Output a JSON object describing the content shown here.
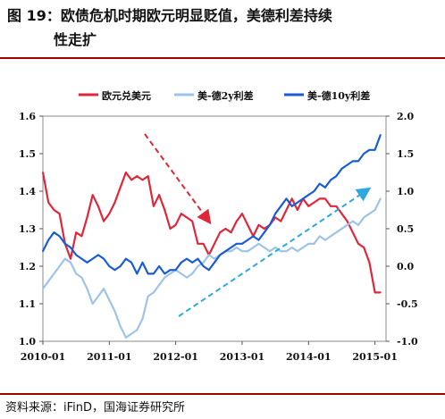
{
  "title": {
    "line1": "图 19：欧债危机时期欧元明显贬值，美德利差持续",
    "line2": "性走扩"
  },
  "source": "资料来源：iFinD，国海证券研究所",
  "colors": {
    "eur": "#e0263a",
    "us_de_2y": "#9dc3e6",
    "us_de_10y": "#1a5bd6",
    "arrow_red": "#e0263a",
    "arrow_blue": "#2ea8e0",
    "rule": "#a00000"
  },
  "chart_data": {
    "type": "line",
    "title": "",
    "x_ticks": [
      "2010-01",
      "2011-01",
      "2012-01",
      "2013-01",
      "2014-01",
      "2015-01"
    ],
    "xlim": [
      "2010-01",
      "2015-03"
    ],
    "y_left": {
      "ticks": [
        "1.0",
        "1.1",
        "1.2",
        "1.3",
        "1.4",
        "1.5",
        "1.6"
      ],
      "lim": [
        1.0,
        1.6
      ]
    },
    "y_right": {
      "ticks": [
        "-1.0",
        "-0.5",
        "0.0",
        "0.5",
        "1.0",
        "1.5",
        "2.0"
      ],
      "lim": [
        -1.0,
        2.0
      ]
    },
    "legend_position": "top",
    "series": [
      {
        "name": "欧元兑美元",
        "axis": "left",
        "color": "#e0263a",
        "points": [
          [
            "2010-01",
            1.45
          ],
          [
            "2010-02",
            1.37
          ],
          [
            "2010-03",
            1.35
          ],
          [
            "2010-04",
            1.34
          ],
          [
            "2010-05",
            1.26
          ],
          [
            "2010-06",
            1.22
          ],
          [
            "2010-07",
            1.29
          ],
          [
            "2010-08",
            1.28
          ],
          [
            "2010-09",
            1.33
          ],
          [
            "2010-10",
            1.39
          ],
          [
            "2010-11",
            1.36
          ],
          [
            "2010-12",
            1.32
          ],
          [
            "2011-01",
            1.34
          ],
          [
            "2011-02",
            1.37
          ],
          [
            "2011-03",
            1.41
          ],
          [
            "2011-04",
            1.45
          ],
          [
            "2011-05",
            1.43
          ],
          [
            "2011-06",
            1.44
          ],
          [
            "2011-07",
            1.43
          ],
          [
            "2011-08",
            1.44
          ],
          [
            "2011-09",
            1.36
          ],
          [
            "2011-10",
            1.39
          ],
          [
            "2011-11",
            1.35
          ],
          [
            "2011-12",
            1.3
          ],
          [
            "2012-01",
            1.31
          ],
          [
            "2012-02",
            1.34
          ],
          [
            "2012-03",
            1.33
          ],
          [
            "2012-04",
            1.32
          ],
          [
            "2012-05",
            1.26
          ],
          [
            "2012-06",
            1.26
          ],
          [
            "2012-07",
            1.23
          ],
          [
            "2012-08",
            1.26
          ],
          [
            "2012-09",
            1.29
          ],
          [
            "2012-10",
            1.3
          ],
          [
            "2012-11",
            1.29
          ],
          [
            "2012-12",
            1.32
          ],
          [
            "2013-01",
            1.34
          ],
          [
            "2013-02",
            1.31
          ],
          [
            "2013-03",
            1.28
          ],
          [
            "2013-04",
            1.31
          ],
          [
            "2013-05",
            1.3
          ],
          [
            "2013-06",
            1.31
          ],
          [
            "2013-07",
            1.33
          ],
          [
            "2013-08",
            1.32
          ],
          [
            "2013-09",
            1.35
          ],
          [
            "2013-10",
            1.38
          ],
          [
            "2013-11",
            1.35
          ],
          [
            "2013-12",
            1.38
          ],
          [
            "2014-01",
            1.36
          ],
          [
            "2014-02",
            1.37
          ],
          [
            "2014-03",
            1.38
          ],
          [
            "2014-04",
            1.38
          ],
          [
            "2014-05",
            1.36
          ],
          [
            "2014-06",
            1.36
          ],
          [
            "2014-07",
            1.34
          ],
          [
            "2014-08",
            1.32
          ],
          [
            "2014-09",
            1.29
          ],
          [
            "2014-10",
            1.26
          ],
          [
            "2014-11",
            1.25
          ],
          [
            "2014-12",
            1.21
          ],
          [
            "2015-01",
            1.13
          ],
          [
            "2015-02",
            1.13
          ]
        ]
      },
      {
        "name": "美-德2y利差",
        "axis": "right",
        "color": "#9dc3e6",
        "points": [
          [
            "2010-01",
            -0.3
          ],
          [
            "2010-02",
            -0.2
          ],
          [
            "2010-03",
            -0.1
          ],
          [
            "2010-04",
            0.0
          ],
          [
            "2010-05",
            0.1
          ],
          [
            "2010-06",
            0.05
          ],
          [
            "2010-07",
            -0.1
          ],
          [
            "2010-08",
            -0.15
          ],
          [
            "2010-09",
            -0.3
          ],
          [
            "2010-10",
            -0.5
          ],
          [
            "2010-11",
            -0.4
          ],
          [
            "2010-12",
            -0.3
          ],
          [
            "2011-01",
            -0.45
          ],
          [
            "2011-02",
            -0.6
          ],
          [
            "2011-03",
            -0.8
          ],
          [
            "2011-04",
            -0.95
          ],
          [
            "2011-05",
            -0.9
          ],
          [
            "2011-06",
            -0.85
          ],
          [
            "2011-07",
            -0.7
          ],
          [
            "2011-08",
            -0.4
          ],
          [
            "2011-09",
            -0.35
          ],
          [
            "2011-10",
            -0.25
          ],
          [
            "2011-11",
            -0.15
          ],
          [
            "2011-12",
            -0.1
          ],
          [
            "2012-01",
            -0.05
          ],
          [
            "2012-02",
            -0.1
          ],
          [
            "2012-03",
            -0.15
          ],
          [
            "2012-04",
            -0.1
          ],
          [
            "2012-05",
            0.0
          ],
          [
            "2012-06",
            0.05
          ],
          [
            "2012-07",
            0.15
          ],
          [
            "2012-08",
            0.1
          ],
          [
            "2012-09",
            0.15
          ],
          [
            "2012-10",
            0.2
          ],
          [
            "2012-11",
            0.2
          ],
          [
            "2012-12",
            0.25
          ],
          [
            "2013-01",
            0.2
          ],
          [
            "2013-02",
            0.2
          ],
          [
            "2013-03",
            0.25
          ],
          [
            "2013-04",
            0.3
          ],
          [
            "2013-05",
            0.25
          ],
          [
            "2013-06",
            0.2
          ],
          [
            "2013-07",
            0.25
          ],
          [
            "2013-08",
            0.2
          ],
          [
            "2013-09",
            0.2
          ],
          [
            "2013-10",
            0.25
          ],
          [
            "2013-11",
            0.2
          ],
          [
            "2013-12",
            0.25
          ],
          [
            "2014-01",
            0.3
          ],
          [
            "2014-02",
            0.3
          ],
          [
            "2014-03",
            0.4
          ],
          [
            "2014-04",
            0.35
          ],
          [
            "2014-05",
            0.4
          ],
          [
            "2014-06",
            0.45
          ],
          [
            "2014-07",
            0.5
          ],
          [
            "2014-08",
            0.55
          ],
          [
            "2014-09",
            0.6
          ],
          [
            "2014-10",
            0.55
          ],
          [
            "2014-11",
            0.65
          ],
          [
            "2014-12",
            0.7
          ],
          [
            "2015-01",
            0.75
          ],
          [
            "2015-02",
            0.9
          ]
        ]
      },
      {
        "name": "美-德10y利差",
        "axis": "right",
        "color": "#1a5bd6",
        "points": [
          [
            "2010-01",
            0.2
          ],
          [
            "2010-02",
            0.35
          ],
          [
            "2010-03",
            0.45
          ],
          [
            "2010-04",
            0.4
          ],
          [
            "2010-05",
            0.3
          ],
          [
            "2010-06",
            0.25
          ],
          [
            "2010-07",
            0.15
          ],
          [
            "2010-08",
            0.1
          ],
          [
            "2010-09",
            0.05
          ],
          [
            "2010-10",
            0.1
          ],
          [
            "2010-11",
            0.15
          ],
          [
            "2010-12",
            0.1
          ],
          [
            "2011-01",
            0.0
          ],
          [
            "2011-02",
            -0.05
          ],
          [
            "2011-03",
            0.0
          ],
          [
            "2011-04",
            0.1
          ],
          [
            "2011-05",
            0.05
          ],
          [
            "2011-06",
            -0.1
          ],
          [
            "2011-07",
            0.05
          ],
          [
            "2011-08",
            -0.1
          ],
          [
            "2011-09",
            -0.1
          ],
          [
            "2011-10",
            0.0
          ],
          [
            "2011-11",
            -0.1
          ],
          [
            "2011-12",
            -0.05
          ],
          [
            "2012-01",
            -0.05
          ],
          [
            "2012-02",
            0.05
          ],
          [
            "2012-03",
            0.1
          ],
          [
            "2012-04",
            0.05
          ],
          [
            "2012-05",
            0.1
          ],
          [
            "2012-06",
            0.0
          ],
          [
            "2012-07",
            -0.05
          ],
          [
            "2012-08",
            0.05
          ],
          [
            "2012-09",
            0.15
          ],
          [
            "2012-10",
            0.2
          ],
          [
            "2012-11",
            0.25
          ],
          [
            "2012-12",
            0.3
          ],
          [
            "2013-01",
            0.3
          ],
          [
            "2013-02",
            0.35
          ],
          [
            "2013-03",
            0.4
          ],
          [
            "2013-04",
            0.35
          ],
          [
            "2013-05",
            0.45
          ],
          [
            "2013-06",
            0.55
          ],
          [
            "2013-07",
            0.7
          ],
          [
            "2013-08",
            0.8
          ],
          [
            "2013-09",
            0.9
          ],
          [
            "2013-10",
            0.8
          ],
          [
            "2013-11",
            0.85
          ],
          [
            "2013-12",
            0.9
          ],
          [
            "2014-01",
            0.95
          ],
          [
            "2014-02",
            1.0
          ],
          [
            "2014-03",
            1.1
          ],
          [
            "2014-04",
            1.05
          ],
          [
            "2014-05",
            1.15
          ],
          [
            "2014-06",
            1.2
          ],
          [
            "2014-07",
            1.3
          ],
          [
            "2014-08",
            1.35
          ],
          [
            "2014-09",
            1.4
          ],
          [
            "2014-10",
            1.4
          ],
          [
            "2014-11",
            1.5
          ],
          [
            "2014-12",
            1.55
          ],
          [
            "2015-01",
            1.55
          ],
          [
            "2015-02",
            1.75
          ]
        ]
      }
    ]
  }
}
